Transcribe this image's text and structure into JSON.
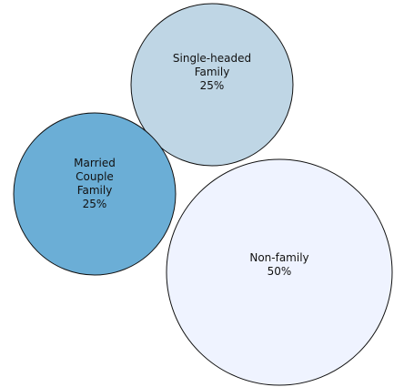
{
  "chart_data": {
    "type": "bubble",
    "title": "",
    "series": [
      {
        "name": "Single-headed Family",
        "label_lines": [
          "Single-headed",
          "Family",
          "25%"
        ],
        "value": 25,
        "color": "#bfd6e5"
      },
      {
        "name": "Married Couple Family",
        "label_lines": [
          "Married",
          "Couple",
          "Family",
          "25%"
        ],
        "value": 25,
        "color": "#6baed6"
      },
      {
        "name": "Non-family",
        "label_lines": [
          "Non-family",
          "50%"
        ],
        "value": 50,
        "color": "#eff3ff"
      }
    ],
    "legend": false,
    "grid": false
  }
}
